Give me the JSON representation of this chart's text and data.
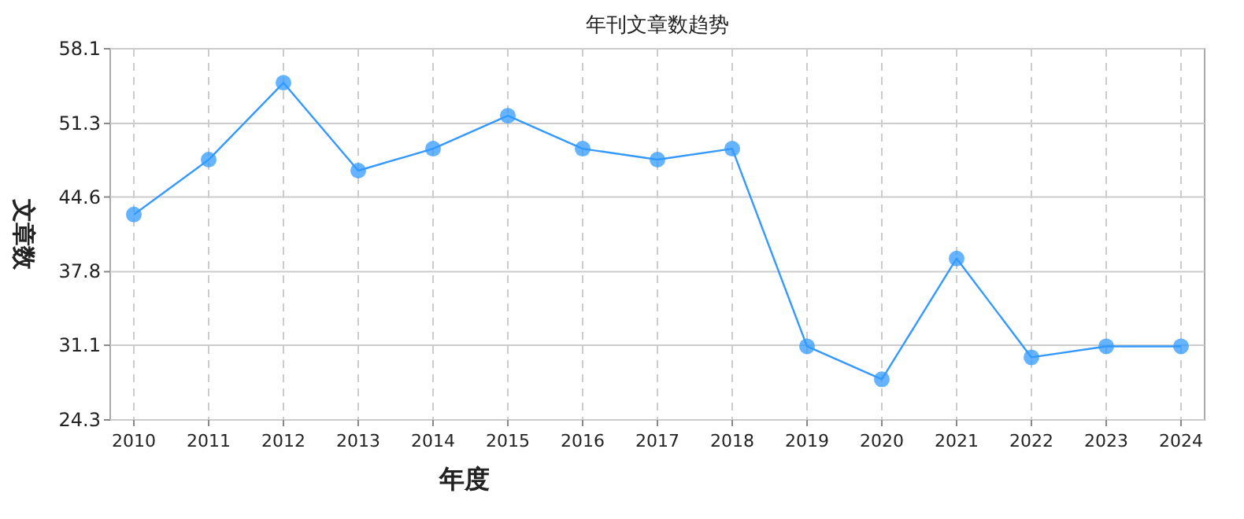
{
  "chart_data": {
    "type": "line",
    "title": "年刊文章数趋势",
    "xlabel": "年度",
    "ylabel": "文章数",
    "categories": [
      "2010",
      "2011",
      "2012",
      "2013",
      "2014",
      "2015",
      "2016",
      "2017",
      "2018",
      "2019",
      "2020",
      "2021",
      "2022",
      "2023",
      "2024"
    ],
    "series": [
      {
        "color": "#3399ff",
        "values": [
          43,
          48,
          55,
          47,
          49,
          52,
          49,
          48,
          49,
          31,
          28,
          39,
          30,
          31,
          31
        ]
      }
    ],
    "ylim": [
      24.3,
      58.1
    ],
    "yticks": [
      24.3,
      31.1,
      37.8,
      44.6,
      51.3,
      58.1
    ],
    "grid": true,
    "marker": "circle",
    "line_style": "solid"
  }
}
